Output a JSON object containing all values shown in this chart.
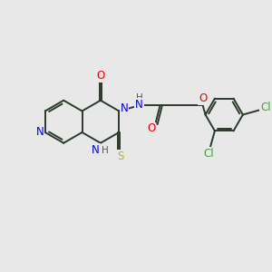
{
  "bg_color": "#e8e8e8",
  "bond_color": "#2a3a2a",
  "atom_colors": {
    "N": "#0000ee",
    "O": "#ee0000",
    "S": "#bbbb00",
    "Cl": "#33aa33",
    "C": "#000000",
    "H": "#555555"
  },
  "figsize": [
    3.0,
    3.0
  ],
  "dpi": 100
}
